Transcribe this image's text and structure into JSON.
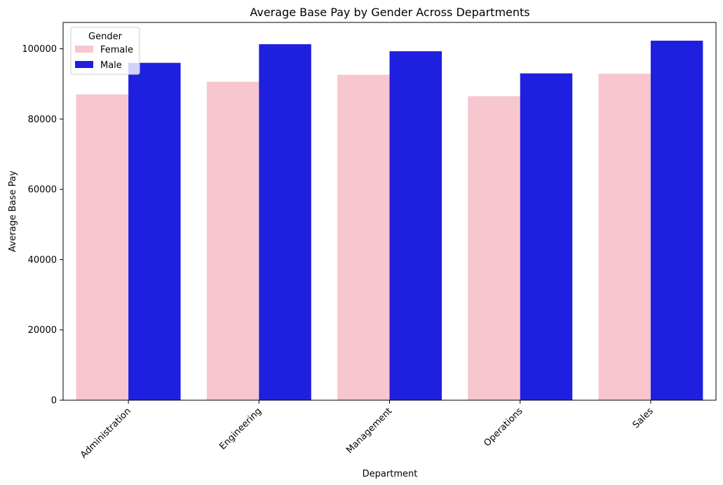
{
  "chart_data": {
    "type": "bar",
    "title": "Average Base Pay by Gender Across Departments",
    "xlabel": "Department",
    "ylabel": "Average Base Pay",
    "categories": [
      "Administration",
      "Engineering",
      "Management",
      "Operations",
      "Sales"
    ],
    "series": [
      {
        "name": "Female",
        "color": "#f7c6cf",
        "values": [
          87000,
          90600,
          92600,
          86500,
          92900
        ]
      },
      {
        "name": "Male",
        "color": "#1f1fe0",
        "values": [
          96000,
          101300,
          99300,
          93000,
          102300
        ]
      }
    ],
    "ylim": [
      0,
      107500
    ],
    "yticks": [
      0,
      20000,
      40000,
      60000,
      80000,
      100000
    ],
    "grid": false,
    "legend": {
      "title": "Gender",
      "placement": "top-left"
    }
  }
}
